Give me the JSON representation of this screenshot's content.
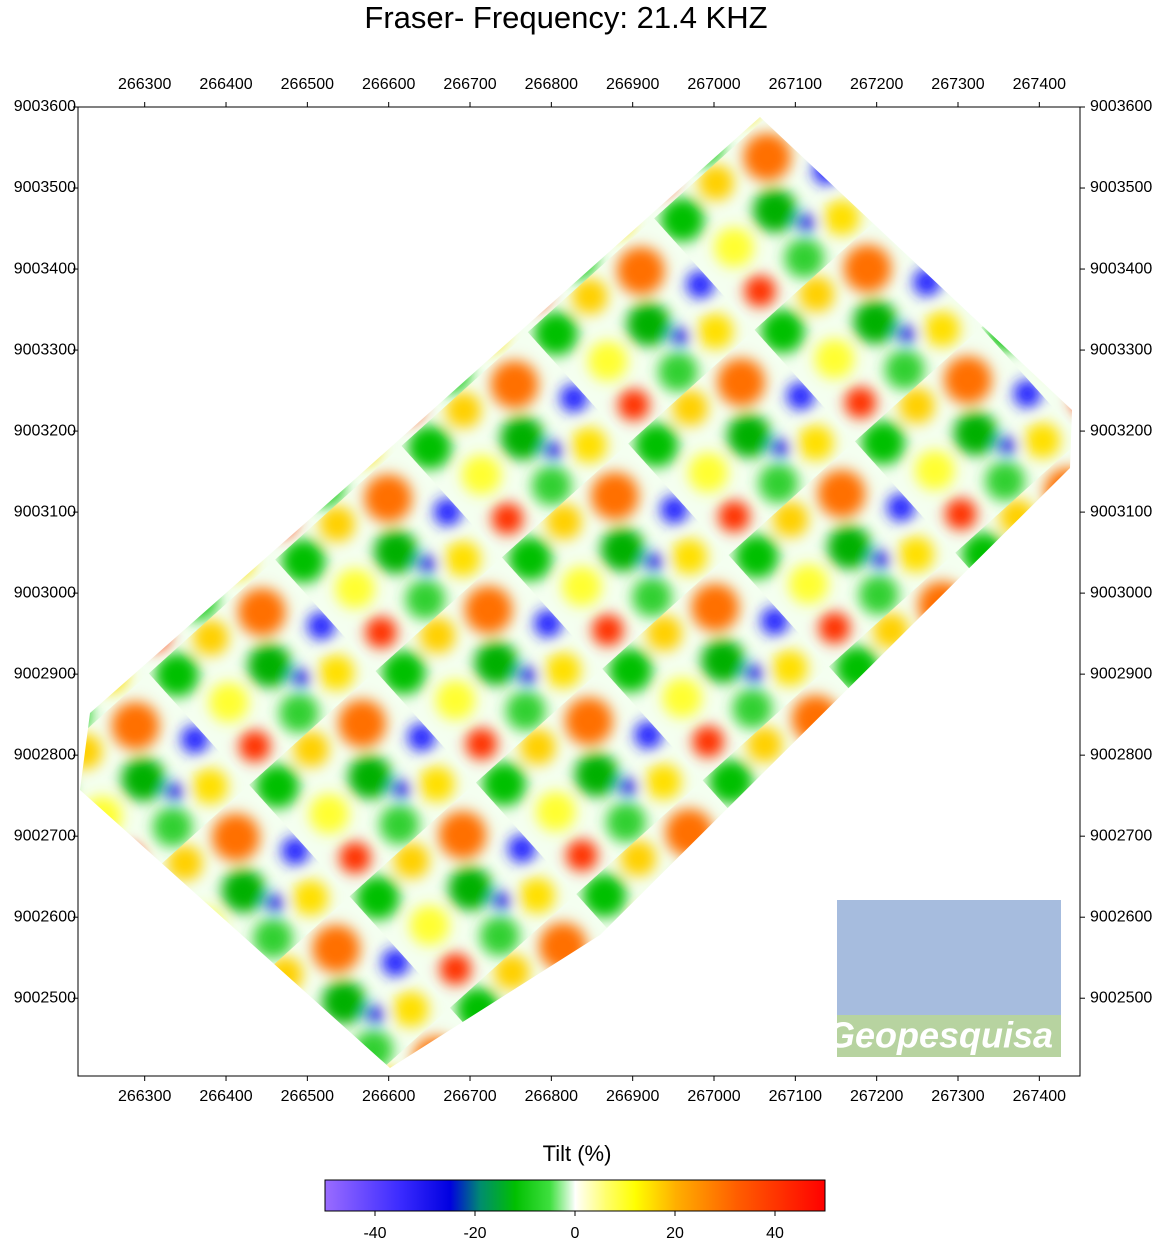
{
  "chart_data": {
    "type": "heatmap",
    "title": "Fraser- Frequency: 21.4 KHZ",
    "xlim": [
      266218,
      267450
    ],
    "ylim": [
      9002404,
      9003600
    ],
    "xticks": [
      266300,
      266400,
      266500,
      266600,
      266700,
      266800,
      266900,
      267000,
      267100,
      267200,
      267300,
      267400
    ],
    "yticks": [
      9002500,
      9002600,
      9002700,
      9002800,
      9002900,
      9003000,
      9003100,
      9003200,
      9003300,
      9003400,
      9003500,
      9003600
    ],
    "colorbar": {
      "label": "Tilt (%)",
      "lim": [
        -50,
        50
      ],
      "ticks": [
        -40,
        -20,
        0,
        20,
        40
      ],
      "colorscale": [
        {
          "value": -50,
          "color": "#9a6cff"
        },
        {
          "value": -35,
          "color": "#3b2bff"
        },
        {
          "value": -25,
          "color": "#0000e0"
        },
        {
          "value": -19,
          "color": "#008c70"
        },
        {
          "value": -12,
          "color": "#00c000"
        },
        {
          "value": -5,
          "color": "#40e040"
        },
        {
          "value": 0,
          "color": "#ffffff"
        },
        {
          "value": 6,
          "color": "#ffff70"
        },
        {
          "value": 12,
          "color": "#ffff00"
        },
        {
          "value": 20,
          "color": "#ffb000"
        },
        {
          "value": 32,
          "color": "#ff6000"
        },
        {
          "value": 50,
          "color": "#ff0000"
        }
      ]
    },
    "watermark": "Geopesquisa"
  }
}
